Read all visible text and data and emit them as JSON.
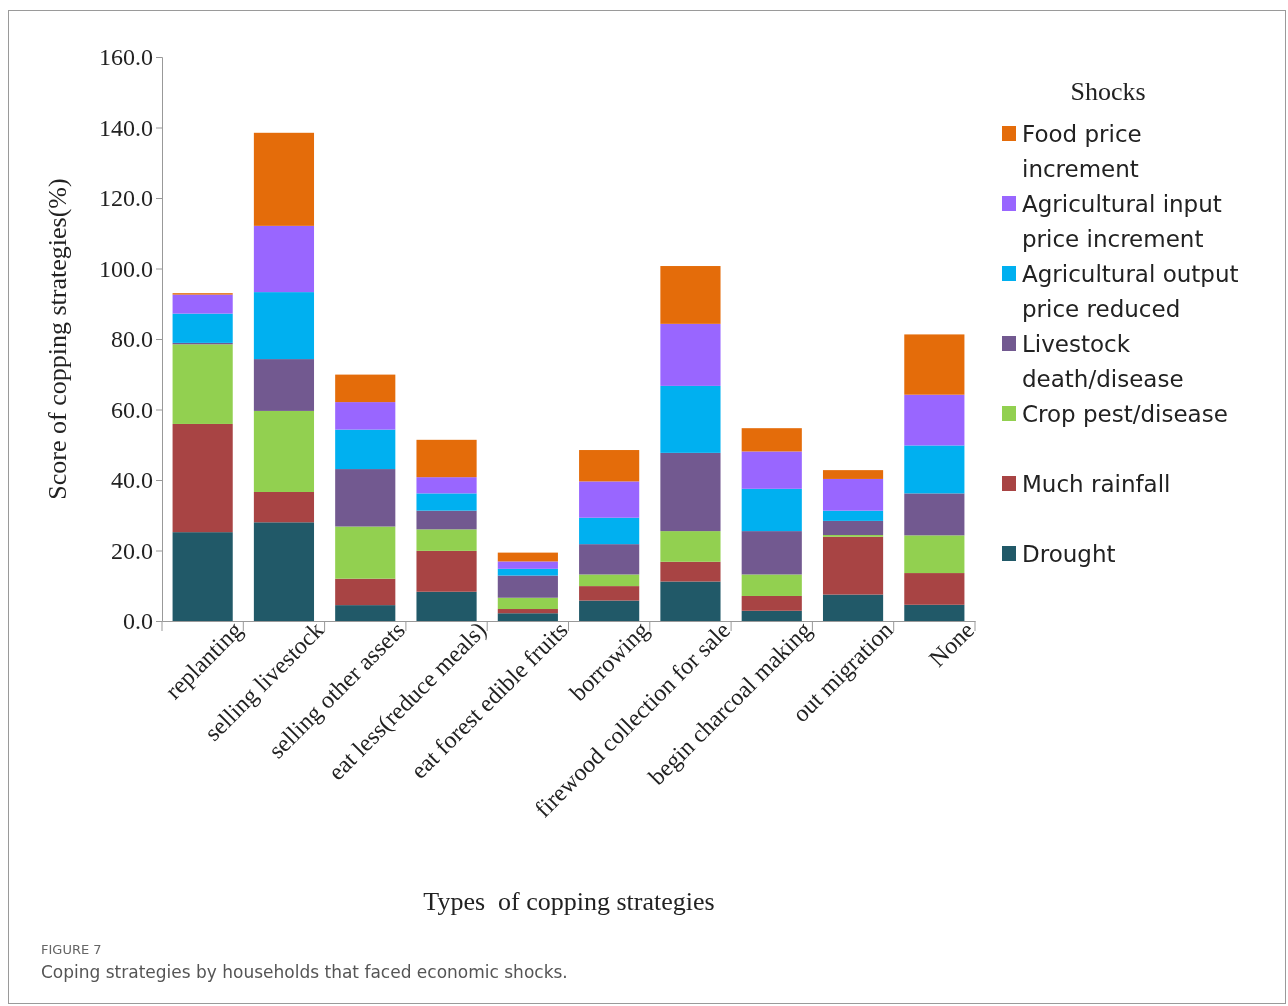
{
  "chart_data": {
    "type": "bar",
    "stacked": true,
    "xlabel": "Types  of copping strategies",
    "ylabel": "Score of copping strategies(%)",
    "legend_title": "Shocks",
    "legend": "right",
    "grid": false,
    "categories": [
      "replanting",
      "selling livestock",
      "selling other assets",
      "eat less(reduce meals)",
      "eat forest edible fruits",
      "borrowing",
      "firewood collection for sale",
      "begin charcoal making",
      "out migration",
      "None"
    ],
    "ylim": [
      0,
      160
    ],
    "yticks": [
      {
        "value": 0,
        "label": "0.0"
      },
      {
        "value": 20,
        "label": "20.0"
      },
      {
        "value": 40,
        "label": "40.0"
      },
      {
        "value": 60,
        "label": "60.0"
      },
      {
        "value": 80,
        "label": "80.0"
      },
      {
        "value": 100,
        "label": "100.0"
      },
      {
        "value": 120,
        "label": "120.0"
      },
      {
        "value": 140,
        "label": "140.0"
      },
      {
        "value": 160,
        "label": "160.0"
      }
    ],
    "series": [
      {
        "name": "Drought",
        "color": "#215968",
        "values": [
          25.2,
          28.0,
          4.5,
          8.3,
          2.2,
          5.8,
          11.2,
          2.9,
          7.5,
          4.6
        ]
      },
      {
        "name": "Much rainfall",
        "color": "#a84444",
        "values": [
          30.7,
          8.6,
          7.5,
          11.6,
          1.2,
          4.1,
          5.6,
          4.2,
          16.4,
          9.0
        ]
      },
      {
        "name": "Crop pest/disease",
        "color": "#92d050",
        "values": [
          22.6,
          23.0,
          14.8,
          6.1,
          3.2,
          3.3,
          8.7,
          6.1,
          0.5,
          10.7
        ]
      },
      {
        "name": "Livestock death/disease",
        "color": "#725990",
        "values": [
          0.4,
          14.7,
          16.3,
          5.3,
          6.3,
          8.6,
          22.2,
          12.3,
          4.0,
          11.9
        ]
      },
      {
        "name": "Agricultural output price reduced",
        "color": "#00b0f0",
        "values": [
          8.3,
          19.0,
          11.2,
          4.9,
          1.9,
          7.5,
          19.0,
          12.0,
          2.9,
          13.6
        ]
      },
      {
        "name": "Agricultural input price increment",
        "color": "#9966ff",
        "values": [
          5.4,
          18.8,
          7.8,
          4.6,
          2.1,
          10.3,
          17.6,
          10.6,
          9.0,
          14.4
        ]
      },
      {
        "name": "Food price increment",
        "color": "#e46c0a",
        "values": [
          0.4,
          26.4,
          7.8,
          10.6,
          2.5,
          8.9,
          16.4,
          6.6,
          2.5,
          17.1
        ]
      }
    ],
    "annotations": [
      "FIGURE 7",
      "Coping strategies by households that faced economic shocks."
    ]
  }
}
